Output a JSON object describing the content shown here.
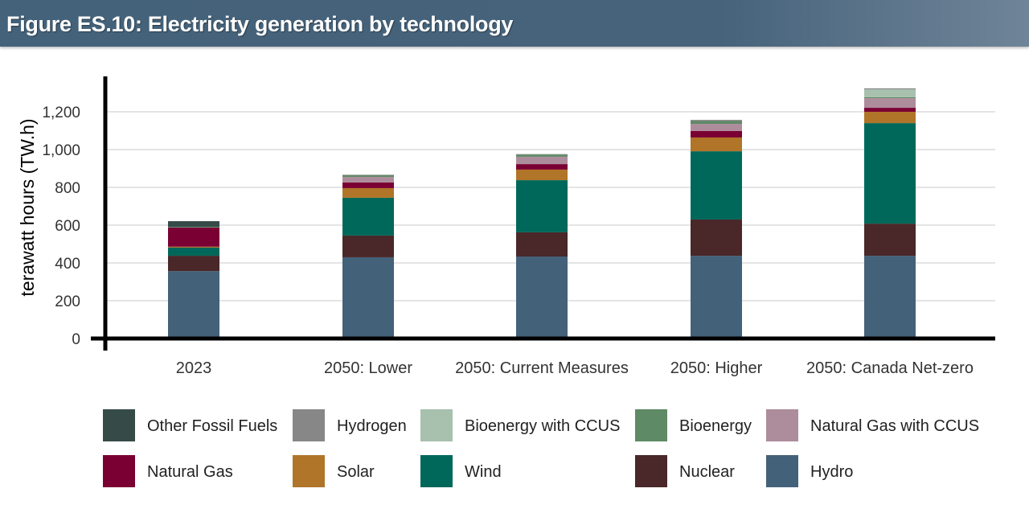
{
  "header": {
    "title": "Figure ES.10: Electricity generation by technology"
  },
  "chart_data": {
    "type": "bar",
    "stacked": true,
    "title": "Figure ES.10: Electricity generation by technology",
    "xlabel": "",
    "ylabel": "terawatt hours (TW.h)",
    "ylim": [
      0,
      1300
    ],
    "yticks": [
      0,
      200,
      400,
      600,
      800,
      1000,
      1200
    ],
    "ytick_labels": [
      "0",
      "200",
      "400",
      "600",
      "800",
      "1,000",
      "1,200"
    ],
    "grid": true,
    "legend_position": "bottom",
    "categories": [
      "2023",
      "2050: Lower",
      "2050: Current Measures",
      "2050: Higher",
      "2050: Canada Net-zero"
    ],
    "series": [
      {
        "name": "Hydro",
        "color": "#44617a",
        "values": [
          357,
          430,
          434,
          438,
          438
        ]
      },
      {
        "name": "Nuclear",
        "color": "#4a2728",
        "values": [
          81,
          115,
          128,
          192,
          170
        ]
      },
      {
        "name": "Wind",
        "color": "#00685a",
        "values": [
          43,
          200,
          276,
          361,
          532
        ]
      },
      {
        "name": "Solar",
        "color": "#b07528",
        "values": [
          5,
          51,
          56,
          73,
          60
        ]
      },
      {
        "name": "Natural Gas",
        "color": "#7a0034",
        "values": [
          101,
          30,
          29,
          34,
          21
        ]
      },
      {
        "name": "Natural Gas with CCUS",
        "color": "#ad8d9b",
        "values": [
          0,
          29,
          39,
          38,
          51
        ]
      },
      {
        "name": "Bioenergy",
        "color": "#5f8a66",
        "values": [
          4,
          10,
          12,
          15,
          5
        ]
      },
      {
        "name": "Bioenergy with CCUS",
        "color": "#a8c0ae",
        "values": [
          0,
          0,
          0,
          0,
          42
        ]
      },
      {
        "name": "Hydrogen",
        "color": "#878787",
        "values": [
          0,
          2,
          2,
          6,
          5
        ]
      },
      {
        "name": "Other Fossil Fuels",
        "color": "#364b48",
        "values": [
          30,
          0,
          0,
          0,
          0
        ]
      }
    ],
    "legend_order": [
      "Other Fossil Fuels",
      "Hydrogen",
      "Bioenergy with CCUS",
      "Bioenergy",
      "Natural Gas with CCUS",
      "Natural Gas",
      "Solar",
      "Wind",
      "Nuclear",
      "Hydro"
    ]
  }
}
